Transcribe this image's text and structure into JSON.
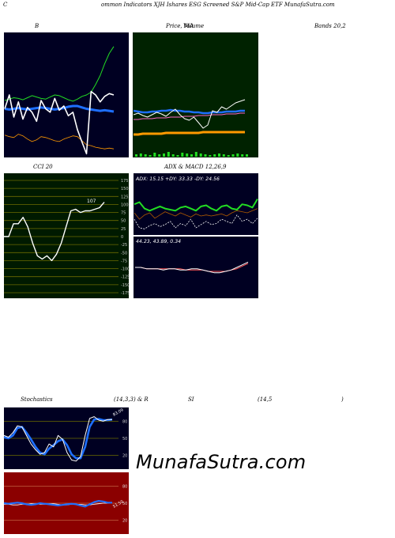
{
  "header": {
    "title_c": "C",
    "title_rest": "ommon Indicators XJH Ishares ESG Screened S&P Mid-Cap ETF MunafaSutra.com"
  },
  "labels": {
    "bollinger_left": "B",
    "price_ma": "Price, MA",
    "volume_overlap": "Volume",
    "bands_right": "Bands 20,2",
    "cci": "CCI 20",
    "adx_macd": "ADX  & MACD 12,26,9",
    "adx_values": "ADX: 15.15  +DY: 33.33  -DY: 24.56",
    "macd_values": "44.23,  43.89,  0.34",
    "cci_current": "107",
    "stoch_title": "Stochastics",
    "stoch_params": "(14,3,3) & R",
    "rsi_label": "SI",
    "rsi_params": "(14,5",
    "rsi_close": ")",
    "stoch_current": "83.09",
    "rsi_current": "51.50"
  },
  "watermark": "MunafaSutra.com",
  "colors": {
    "panel_dark": "#000022",
    "price_panel": "#002200",
    "cci_panel": "#001a00",
    "rsi_panel": "#8b0000",
    "accent_blue": "#1e6fff",
    "green": "#22dd22",
    "orange": "#ff9900"
  },
  "chart_data": [
    {
      "panel": "bollinger",
      "type": "line",
      "series": [
        {
          "values": [
            72,
            74,
            76,
            75,
            73,
            76,
            79,
            77,
            75,
            74,
            77,
            80,
            79,
            76,
            73,
            71,
            74,
            78,
            80,
            84,
            95,
            108,
            125,
            140,
            150
          ]
        },
        {
          "values": [
            60,
            59,
            60,
            61,
            60,
            59,
            60,
            61,
            62,
            61,
            60,
            59,
            60,
            61,
            63,
            64,
            64,
            62,
            60,
            59,
            58,
            57,
            58,
            57,
            56
          ]
        },
        {
          "values": [
            43,
            41,
            40,
            44,
            42,
            38,
            35,
            37,
            41,
            40,
            38,
            36,
            35,
            38,
            40,
            42,
            41,
            36,
            31,
            30,
            28,
            27,
            26,
            27,
            26
          ]
        },
        {
          "values": [
            60,
            80,
            48,
            70,
            45,
            62,
            55,
            42,
            72,
            60,
            55,
            75,
            58,
            64,
            50,
            55,
            30,
            12,
            -5,
            85,
            80,
            70,
            78,
            82,
            80
          ]
        }
      ]
    },
    {
      "panel": "price_ma",
      "type": "line",
      "series": [
        {
          "values": [
            55,
            57,
            54,
            52,
            55,
            58,
            56,
            53,
            58,
            62,
            55,
            50,
            48,
            52,
            45,
            38,
            42,
            60,
            58,
            65,
            62,
            66,
            70,
            72,
            74
          ]
        },
        {
          "values": [
            60,
            59,
            58,
            58,
            59,
            59,
            60,
            60,
            61,
            60,
            60,
            59,
            59,
            58,
            58,
            57,
            57,
            58,
            58,
            58,
            59,
            59,
            59,
            60,
            60
          ]
        },
        {
          "values": [
            49,
            49,
            50,
            50,
            50,
            51,
            51,
            51,
            52,
            52,
            52,
            53,
            53,
            53,
            54,
            54,
            54,
            55,
            55,
            55,
            56,
            56,
            56,
            57,
            57
          ]
        },
        {
          "values": [
            30,
            30,
            31,
            31,
            31,
            31,
            31,
            32,
            32,
            32,
            32,
            32,
            32,
            32,
            32,
            33,
            33,
            33,
            33,
            33,
            33,
            33,
            33,
            33,
            33
          ]
        }
      ],
      "volume": [
        3,
        4,
        3,
        2,
        5,
        3,
        4,
        6,
        3,
        2,
        5,
        4,
        3,
        6,
        4,
        3,
        2,
        3,
        4,
        3,
        2,
        3,
        4,
        3,
        3
      ]
    },
    {
      "panel": "cci",
      "type": "line",
      "ylim": [
        -175,
        175
      ],
      "yticks": [
        175,
        150,
        125,
        100,
        75,
        50,
        25,
        0,
        -25,
        -50,
        -75,
        -100,
        -125,
        -150,
        -175
      ],
      "series": [
        {
          "values": [
            0,
            0,
            40,
            40,
            60,
            30,
            -20,
            -60,
            -70,
            -60,
            -75,
            -55,
            -20,
            30,
            80,
            85,
            75,
            80,
            80,
            85,
            90,
            107
          ]
        }
      ]
    },
    {
      "panel": "adx",
      "type": "line",
      "series": [
        {
          "name": "+DY",
          "values": [
            28,
            30,
            24,
            22,
            24,
            26,
            24,
            23,
            22,
            25,
            26,
            24,
            22,
            26,
            27,
            24,
            22,
            26,
            27,
            24,
            23,
            28,
            27,
            25,
            33
          ]
        },
        {
          "name": "-DY",
          "values": [
            20,
            14,
            18,
            20,
            15,
            18,
            21,
            19,
            17,
            20,
            18,
            16,
            19,
            17,
            18,
            17,
            18,
            19,
            17,
            20,
            22,
            21,
            20,
            22,
            24
          ]
        },
        {
          "name": "ADX",
          "values": [
            14,
            6,
            5,
            8,
            10,
            7,
            9,
            12,
            6,
            10,
            8,
            14,
            6,
            9,
            12,
            9,
            10,
            14,
            12,
            10,
            18,
            12,
            14,
            10,
            15
          ]
        }
      ]
    },
    {
      "panel": "macd",
      "type": "line",
      "series": [
        {
          "values": [
            0,
            0,
            -1,
            -1,
            -1,
            -2,
            -1,
            -1,
            -2,
            -2,
            -1,
            -1,
            -2,
            -3,
            -4,
            -4,
            -3,
            -2,
            0,
            2,
            4
          ]
        },
        {
          "values": [
            0,
            0,
            -1,
            -1,
            -1,
            -1,
            -1,
            -1,
            -1,
            -2,
            -2,
            -2,
            -2,
            -3,
            -3,
            -3,
            -3,
            -2,
            -1,
            1,
            3
          ]
        }
      ]
    },
    {
      "panel": "stochastics",
      "type": "line",
      "ylim": [
        0,
        100
      ],
      "yticks": [
        80,
        50,
        20
      ],
      "series": [
        {
          "values": [
            55,
            52,
            60,
            72,
            70,
            55,
            40,
            30,
            22,
            25,
            40,
            35,
            55,
            48,
            25,
            12,
            10,
            18,
            55,
            85,
            88,
            82,
            80,
            83,
            83
          ]
        },
        {
          "values": [
            52,
            50,
            55,
            68,
            70,
            60,
            48,
            35,
            25,
            22,
            32,
            38,
            45,
            48,
            38,
            22,
            15,
            15,
            35,
            70,
            83,
            84,
            82,
            82,
            83
          ]
        }
      ]
    },
    {
      "panel": "rsi",
      "type": "line",
      "ylim": [
        0,
        100
      ],
      "yticks": [
        80,
        50,
        20
      ],
      "series": [
        {
          "values": [
            50,
            49,
            50,
            51,
            50,
            48,
            47,
            48,
            50,
            49,
            48,
            47,
            46,
            47,
            48,
            49,
            48,
            46,
            44,
            48,
            52,
            54,
            53,
            51,
            51
          ]
        },
        {
          "values": [
            48,
            48,
            47,
            47,
            48,
            48,
            49,
            49,
            48,
            48,
            49,
            49,
            48,
            47,
            47,
            48,
            48,
            48,
            47,
            47,
            48,
            49,
            50,
            50,
            51
          ]
        }
      ]
    }
  ]
}
